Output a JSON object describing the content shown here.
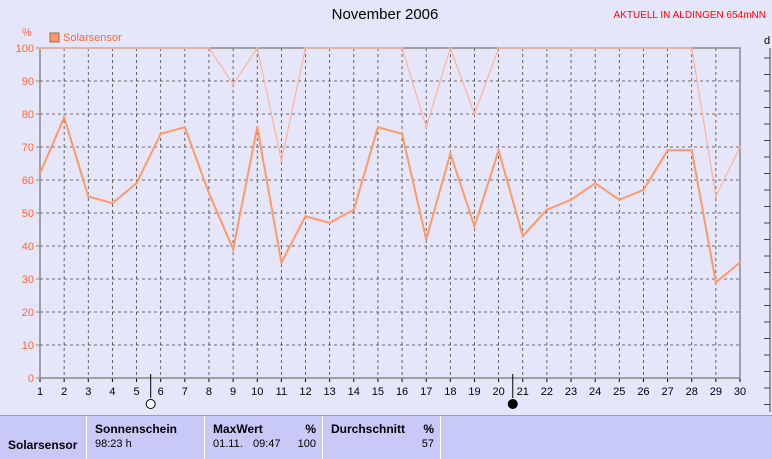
{
  "title": "November 2006",
  "station": "AKTUELL IN ALDINGEN 654mNN",
  "chart_data": {
    "type": "line",
    "title": "November 2006",
    "ylabel": "%",
    "ylim": [
      0,
      100
    ],
    "xlim": [
      1,
      30
    ],
    "grid": true,
    "legend_position": "top-left",
    "y_ticks": [
      "0",
      "10",
      "20",
      "30",
      "40",
      "50",
      "60",
      "70",
      "80",
      "90",
      "100"
    ],
    "x": [
      "1",
      "2",
      "3",
      "4",
      "5",
      "6",
      "7",
      "8",
      "9",
      "10",
      "11",
      "12",
      "13",
      "14",
      "15",
      "16",
      "17",
      "18",
      "19",
      "20",
      "21",
      "22",
      "23",
      "24",
      "25",
      "26",
      "27",
      "28",
      "29",
      "30"
    ],
    "series": [
      {
        "name": "Solarsensor",
        "role": "average",
        "color": "#ff9966",
        "values": [
          62,
          79,
          55,
          53,
          59,
          74,
          76,
          56,
          39,
          76,
          35,
          49,
          47,
          51,
          76,
          74,
          42,
          68,
          46,
          69,
          43,
          51,
          54,
          59,
          54,
          57,
          69,
          69,
          29,
          35
        ]
      },
      {
        "role": "maximum",
        "color": "#ffb090",
        "values": [
          100,
          100,
          100,
          100,
          100,
          100,
          100,
          100,
          89,
          100,
          66,
          100,
          100,
          100,
          100,
          100,
          76,
          100,
          80,
          100,
          100,
          100,
          100,
          100,
          100,
          100,
          100,
          100,
          55,
          70
        ]
      }
    ],
    "moon_markers": [
      {
        "day": 6,
        "phase": "full-moon"
      },
      {
        "day": 21,
        "phase": "new-moon"
      }
    ],
    "right_axis_label": "d",
    "colors": {
      "background": "#e6e6fa",
      "plot_border": "#888888",
      "grid": "#444444",
      "axis_text": "#ff6633",
      "line": "#ff9966"
    }
  },
  "stats": {
    "row_label": "Solarsensor",
    "sonnenschein": {
      "header": "Sonnenschein",
      "value": "98:23 h"
    },
    "maxwert": {
      "header": "MaxWert",
      "unit": "%",
      "date": "01.11.",
      "time": "09:47",
      "value": "100"
    },
    "durchschnitt": {
      "header": "Durchschnitt",
      "unit": "%",
      "value": "57"
    }
  }
}
